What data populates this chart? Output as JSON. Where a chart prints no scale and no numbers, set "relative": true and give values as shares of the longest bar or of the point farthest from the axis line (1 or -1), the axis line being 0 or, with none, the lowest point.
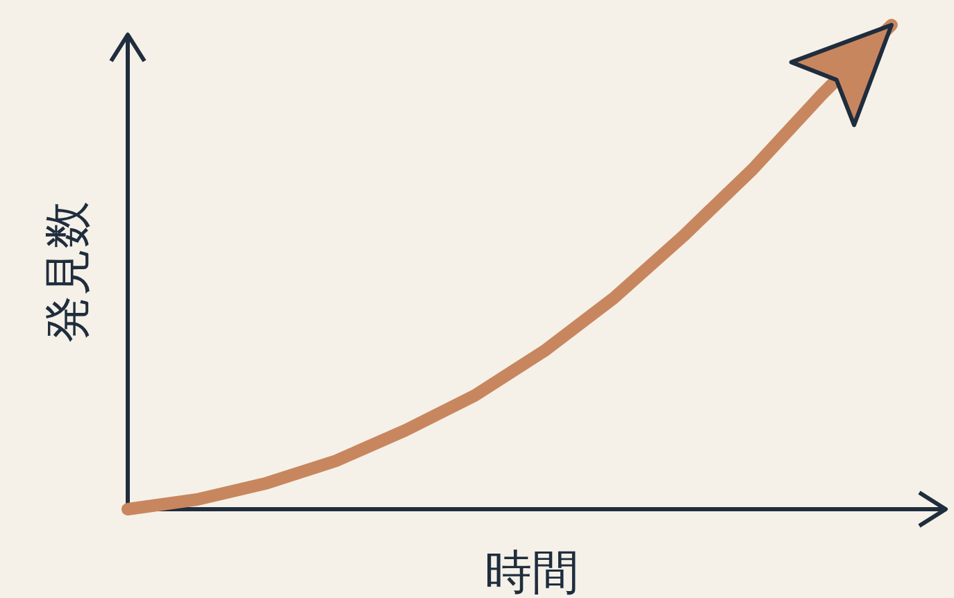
{
  "chart_data": {
    "type": "line",
    "relative": true,
    "xlabel": "時間",
    "ylabel": "発見数",
    "color": "#c8865f",
    "categories": [
      null,
      null,
      null,
      null,
      null,
      null,
      null,
      null,
      null,
      null,
      null,
      null
    ],
    "values": [
      0,
      0.02,
      0.054,
      0.1,
      0.163,
      0.235,
      0.327,
      0.436,
      0.564,
      0.702,
      0.857,
      1
    ]
  }
}
